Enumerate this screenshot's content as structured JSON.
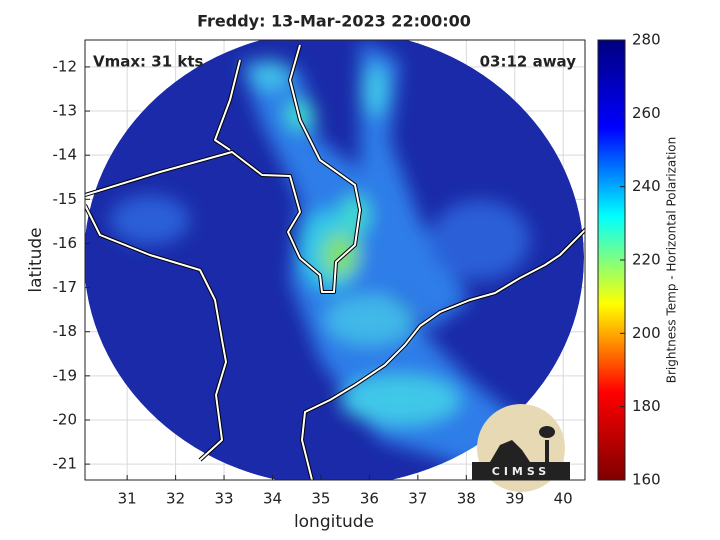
{
  "chart_data": {
    "type": "map",
    "title": "Freddy: 13-Mar-2023 22:00:00",
    "annotations": [
      "Vmax: 31 kts",
      "03:12 away"
    ],
    "xlabel": "longitude",
    "ylabel": "latitude",
    "xlim": [
      30.13,
      40.45
    ],
    "ylim": [
      -21.36,
      -11.39
    ],
    "xticks": [
      31,
      32,
      33,
      34,
      35,
      36,
      37,
      38,
      39,
      40
    ],
    "yticks": [
      -12,
      -13,
      -14,
      -15,
      -16,
      -17,
      -18,
      -19,
      -20,
      -21
    ],
    "grid": true,
    "colorbar": {
      "label": "Brightness Temp - Horizontal Polarization",
      "lim": [
        160,
        280
      ],
      "ticks": [
        160,
        180,
        200,
        220,
        240,
        260,
        280
      ],
      "colors": [
        "#7f0000",
        "#ff0000",
        "#ffff00",
        "#00ffff",
        "#0000ff",
        "#00007f"
      ]
    },
    "logo": "CIMSS"
  }
}
